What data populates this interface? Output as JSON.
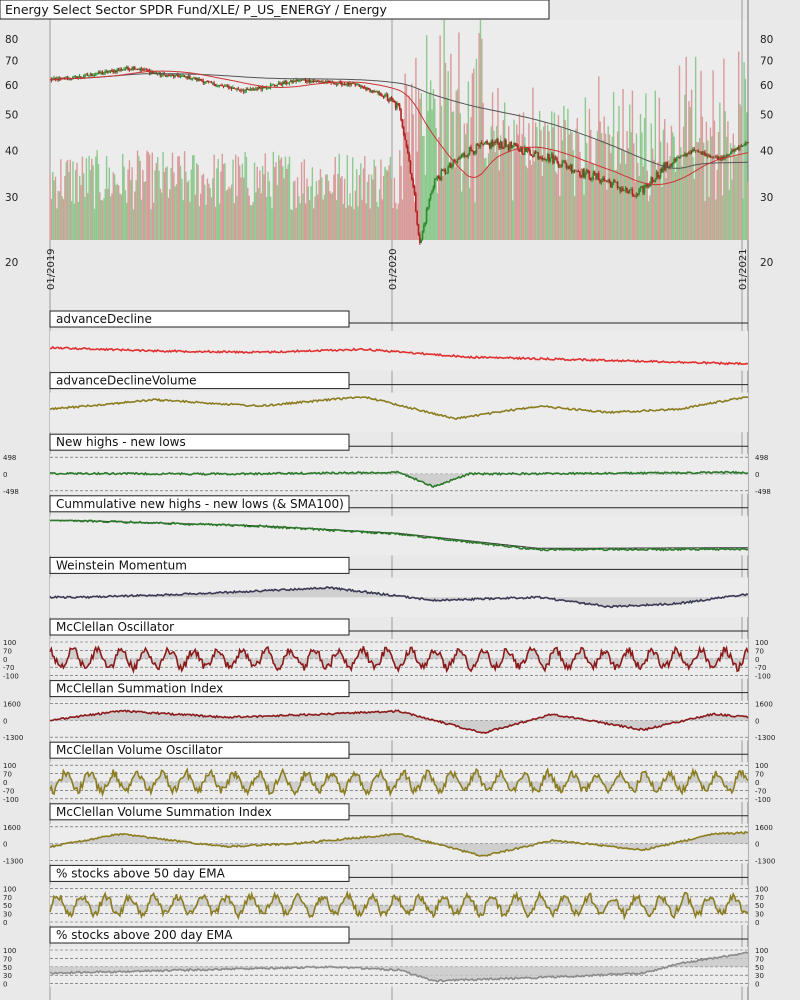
{
  "chart_data": {
    "type": "line",
    "title": "Energy Select Sector SPDR Fund/XLE/ P_US_ENERGY / Energy",
    "x_dates": [
      "01/2019",
      "01/2020",
      "01/2021"
    ],
    "price": {
      "scale": "log",
      "ylim": [
        20,
        90
      ],
      "ticks": [
        20,
        30,
        40,
        50,
        60,
        70,
        80
      ],
      "anchors": [
        [
          0,
          62
        ],
        [
          0.04,
          63
        ],
        [
          0.08,
          65
        ],
        [
          0.12,
          67
        ],
        [
          0.16,
          64
        ],
        [
          0.2,
          63
        ],
        [
          0.24,
          60
        ],
        [
          0.28,
          58
        ],
        [
          0.32,
          60
        ],
        [
          0.36,
          62
        ],
        [
          0.4,
          61
        ],
        [
          0.44,
          60
        ],
        [
          0.48,
          56
        ],
        [
          0.5,
          52
        ],
        [
          0.53,
          22
        ],
        [
          0.55,
          33
        ],
        [
          0.58,
          37
        ],
        [
          0.6,
          40
        ],
        [
          0.64,
          42
        ],
        [
          0.68,
          40
        ],
        [
          0.72,
          38
        ],
        [
          0.76,
          35
        ],
        [
          0.8,
          33
        ],
        [
          0.84,
          30
        ],
        [
          0.86,
          33
        ],
        [
          0.88,
          36
        ],
        [
          0.92,
          40
        ],
        [
          0.96,
          38
        ],
        [
          1,
          42
        ]
      ],
      "colors": {
        "up": "#2e8b2e",
        "down": "#b22222",
        "sma_long": "#555555",
        "sma_short": "#cc3333",
        "volume_up": "#8fc98f",
        "volume_down": "#d99a9a"
      }
    },
    "panels": [
      {
        "title": "advanceDecline",
        "color": "#e03030",
        "ticks": [],
        "anchors": [
          [
            0,
            0.4
          ],
          [
            0.15,
            0.5
          ],
          [
            0.3,
            0.55
          ],
          [
            0.45,
            0.45
          ],
          [
            0.6,
            0.7
          ],
          [
            0.8,
            0.8
          ],
          [
            1,
            0.92
          ]
        ]
      },
      {
        "title": "advanceDeclineVolume",
        "color": "#8b7d20",
        "ticks": [],
        "anchors": [
          [
            0,
            0.4
          ],
          [
            0.15,
            0.1
          ],
          [
            0.3,
            0.3
          ],
          [
            0.45,
            0.0
          ],
          [
            0.58,
            0.7
          ],
          [
            0.7,
            0.3
          ],
          [
            0.8,
            0.5
          ],
          [
            0.9,
            0.4
          ],
          [
            1,
            0.0
          ]
        ]
      },
      {
        "title": "New highs - new lows",
        "color": "#2a7a2a",
        "ticks": [
          "498",
          "0",
          "-498"
        ],
        "fill_zero": true,
        "anchors": [
          [
            0,
            0.48
          ],
          [
            0.25,
            0.5
          ],
          [
            0.5,
            0.45
          ],
          [
            0.55,
            0.9
          ],
          [
            0.6,
            0.5
          ],
          [
            0.8,
            0.48
          ],
          [
            1,
            0.45
          ]
        ]
      },
      {
        "title": "Cummulative new highs - new lows (& SMA100)",
        "color": "#2a7a2a",
        "ticks": [],
        "anchors": [
          [
            0,
            0.0
          ],
          [
            0.3,
            0.2
          ],
          [
            0.5,
            0.45
          ],
          [
            0.7,
            0.95
          ],
          [
            1,
            0.93
          ]
        ]
      },
      {
        "title": "Weinstein Momentum",
        "color": "#3a3a55",
        "ticks": [],
        "fill_zero": true,
        "anchors": [
          [
            0.05,
            0.5
          ],
          [
            0.2,
            0.4
          ],
          [
            0.4,
            0.2
          ],
          [
            0.55,
            0.6
          ],
          [
            0.7,
            0.5
          ],
          [
            0.8,
            0.8
          ],
          [
            0.9,
            0.7
          ],
          [
            1,
            0.4
          ]
        ]
      },
      {
        "title": "McClellan Oscillator",
        "color": "#8b1a1a",
        "ticks": [
          "100",
          "70",
          "0",
          "-70",
          "-100"
        ],
        "fill_zero": true,
        "oscillate": true,
        "anchors": [
          [
            0,
            0.5
          ],
          [
            1,
            0.5
          ]
        ]
      },
      {
        "title": "McClellan Summation Index",
        "color": "#8b1a1a",
        "ticks": [
          "1600",
          "0",
          "-1300"
        ],
        "fill_zero": true,
        "anchors": [
          [
            0,
            0.5
          ],
          [
            0.1,
            0.2
          ],
          [
            0.25,
            0.4
          ],
          [
            0.4,
            0.3
          ],
          [
            0.5,
            0.2
          ],
          [
            0.62,
            0.9
          ],
          [
            0.72,
            0.3
          ],
          [
            0.85,
            0.8
          ],
          [
            0.95,
            0.3
          ],
          [
            1,
            0.4
          ]
        ]
      },
      {
        "title": "McClellan Volume Oscillator",
        "color": "#8b7d20",
        "ticks": [
          "100",
          "70",
          "0",
          "-70",
          "-100"
        ],
        "fill_zero": true,
        "oscillate": true,
        "anchors": [
          [
            0,
            0.5
          ],
          [
            1,
            0.5
          ]
        ]
      },
      {
        "title": "McClellan Volume Summation Index",
        "color": "#8b7d20",
        "ticks": [
          "1600",
          "0",
          "-1300"
        ],
        "fill_zero": true,
        "anchors": [
          [
            0,
            0.6
          ],
          [
            0.1,
            0.2
          ],
          [
            0.25,
            0.6
          ],
          [
            0.35,
            0.5
          ],
          [
            0.5,
            0.2
          ],
          [
            0.62,
            0.9
          ],
          [
            0.72,
            0.4
          ],
          [
            0.85,
            0.7
          ],
          [
            0.95,
            0.2
          ],
          [
            1,
            0.15
          ]
        ]
      },
      {
        "title": "% stocks above 50 day EMA",
        "color": "#8b7d20",
        "ticks": [
          "100",
          "70",
          "50",
          "30",
          "0"
        ],
        "fill_zero": true,
        "oscillate": true,
        "anchors": [
          [
            0,
            0.5
          ],
          [
            0.5,
            0.6
          ],
          [
            0.55,
            0.95
          ],
          [
            0.7,
            0.1
          ],
          [
            0.85,
            0.6
          ],
          [
            0.9,
            0.2
          ],
          [
            1,
            0.25
          ]
        ]
      },
      {
        "title": "% stocks above 200 day EMA",
        "color": "#8b8b8b",
        "ticks": [
          "100",
          "70",
          "50",
          "30",
          "0"
        ],
        "fill_zero": true,
        "anchors": [
          [
            0,
            0.7
          ],
          [
            0.2,
            0.6
          ],
          [
            0.4,
            0.5
          ],
          [
            0.5,
            0.6
          ],
          [
            0.55,
            0.95
          ],
          [
            0.75,
            0.8
          ],
          [
            0.85,
            0.7
          ],
          [
            0.9,
            0.4
          ],
          [
            1,
            0.05
          ]
        ]
      }
    ]
  }
}
